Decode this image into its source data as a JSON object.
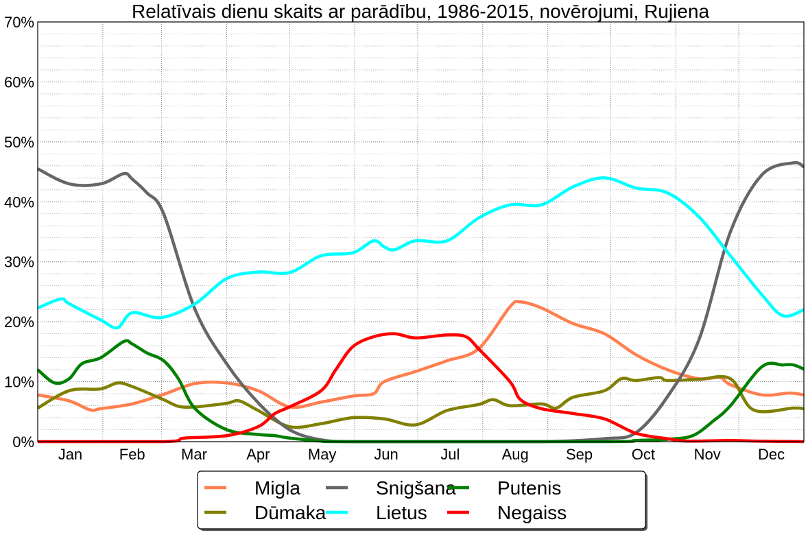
{
  "chart_data": {
    "type": "line",
    "title": "Relatīvais dienu skaits ar parādību, 1986-2015, novērojumi, Rujiena",
    "xlabel": "",
    "ylabel": "",
    "xunit": "day of year",
    "xlim": [
      0,
      365
    ],
    "ylim": [
      0,
      70
    ],
    "yticks": [
      0,
      10,
      20,
      30,
      40,
      50,
      60,
      70
    ],
    "ytick_labels": [
      "0%",
      "10%",
      "20%",
      "30%",
      "40%",
      "50%",
      "60%",
      "70%"
    ],
    "month_labels": [
      "Jan",
      "Feb",
      "Mar",
      "Apr",
      "May",
      "Jun",
      "Jul",
      "Aug",
      "Sep",
      "Oct",
      "Nov",
      "Dec"
    ],
    "month_starts": [
      0,
      31,
      59,
      90,
      120,
      151,
      181,
      212,
      243,
      273,
      304,
      334,
      365
    ],
    "grid": true,
    "legend_position": "bottom-center",
    "series": [
      {
        "name": "Migla",
        "color": "#ff7f50",
        "x": [
          0,
          15,
          25,
          30,
          45,
          60,
          75,
          90,
          105,
          120,
          135,
          150,
          160,
          165,
          180,
          195,
          210,
          225,
          230,
          240,
          255,
          270,
          285,
          300,
          315,
          325,
          330,
          345,
          358,
          365
        ],
        "y": [
          7.8,
          6.8,
          5.3,
          5.5,
          6.3,
          7.9,
          9.7,
          9.8,
          8.5,
          5.8,
          6.6,
          7.6,
          8,
          10,
          11.7,
          13.5,
          15.5,
          22.5,
          23.3,
          22.3,
          19.7,
          18,
          14.5,
          12,
          10.5,
          10.7,
          9.5,
          7.8,
          8.1,
          7.8
        ]
      },
      {
        "name": "Dūmaka",
        "color": "#808000",
        "x": [
          0,
          15,
          30,
          38,
          45,
          60,
          67,
          75,
          90,
          96,
          105,
          120,
          135,
          150,
          165,
          180,
          195,
          210,
          217,
          225,
          240,
          247,
          255,
          270,
          278,
          285,
          296,
          300,
          315,
          330,
          341,
          360,
          365
        ],
        "y": [
          5.6,
          8.5,
          8.8,
          9.8,
          9.2,
          7,
          5.9,
          5.8,
          6.4,
          6.8,
          5.2,
          2.5,
          3,
          4,
          3.8,
          2.8,
          5.2,
          6.2,
          7,
          6,
          6.3,
          5.6,
          7.4,
          8.5,
          10.5,
          10.2,
          10.7,
          10.2,
          10.4,
          10.5,
          5.3,
          5.6,
          5.5
        ]
      },
      {
        "name": "Snigšana",
        "color": "#666666",
        "x": [
          0,
          15,
          30,
          41,
          45,
          52,
          60,
          75,
          90,
          105,
          120,
          135,
          150,
          180,
          240,
          270,
          285,
          300,
          315,
          330,
          345,
          360,
          365
        ],
        "y": [
          45.5,
          43,
          43,
          44.7,
          43.8,
          41.5,
          38,
          22,
          13,
          6.5,
          2,
          0.3,
          0,
          0,
          0,
          0.5,
          1.5,
          7.5,
          17,
          35,
          44.5,
          46.5,
          45.8
        ]
      },
      {
        "name": "Lietus",
        "color": "#00ffff",
        "x": [
          0,
          11,
          15,
          30,
          38,
          45,
          59,
          75,
          90,
          105,
          120,
          135,
          150,
          160,
          165,
          170,
          180,
          195,
          210,
          225,
          240,
          255,
          270,
          285,
          300,
          315,
          330,
          345,
          355,
          365
        ],
        "y": [
          22.3,
          23.8,
          23,
          20.3,
          19,
          21.5,
          20.7,
          23,
          27.2,
          28.3,
          28.2,
          31,
          31.5,
          33.5,
          32.5,
          32,
          33.5,
          33.5,
          37.3,
          39.5,
          39.5,
          42.5,
          44,
          42.3,
          41.5,
          37.5,
          31,
          24.5,
          21,
          22
        ]
      },
      {
        "name": "Putenis",
        "color": "#008000",
        "x": [
          0,
          8,
          15,
          21,
          30,
          41,
          45,
          52,
          60,
          67,
          75,
          90,
          105,
          113,
          120,
          135,
          150,
          270,
          285,
          300,
          312,
          322,
          330,
          345,
          355,
          360,
          365
        ],
        "y": [
          12,
          9.8,
          10.5,
          13,
          14,
          16.7,
          16.3,
          14.8,
          13.5,
          10.5,
          5.5,
          2,
          1.2,
          1,
          0.6,
          0.1,
          0,
          0,
          0.2,
          0.4,
          1,
          3.5,
          6,
          12.5,
          12.8,
          12.8,
          12.1
        ]
      },
      {
        "name": "Negaiss",
        "color": "#ff0000",
        "x": [
          0,
          60,
          70,
          90,
          105,
          113,
          120,
          135,
          142,
          150,
          160,
          170,
          180,
          195,
          204,
          210,
          225,
          230,
          240,
          255,
          270,
          285,
          300,
          309,
          330,
          341,
          365
        ],
        "y": [
          0,
          0,
          0.6,
          1,
          2.5,
          4.7,
          5.8,
          8.5,
          12,
          15.8,
          17.5,
          18,
          17.3,
          17.8,
          17.5,
          15.5,
          10,
          7,
          5.5,
          4.7,
          3.8,
          1.4,
          0.5,
          0.1,
          0.2,
          0.1,
          0
        ]
      }
    ]
  }
}
